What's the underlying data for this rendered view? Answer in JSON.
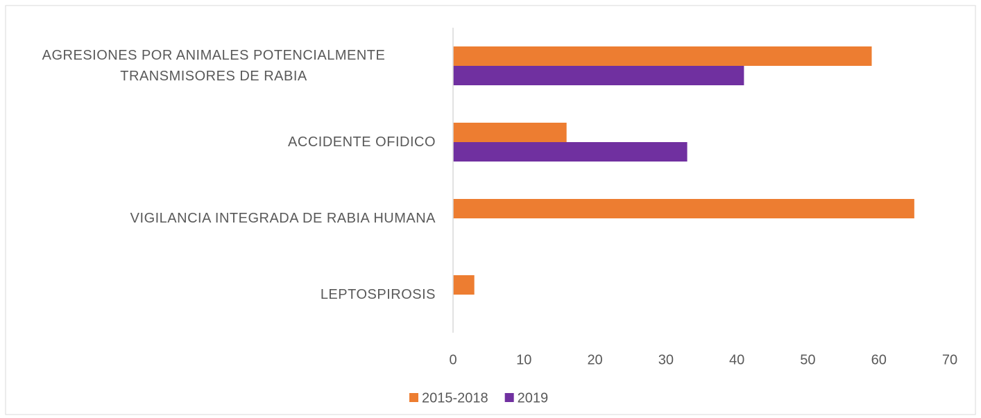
{
  "chart_data": {
    "type": "bar",
    "orientation": "horizontal",
    "categories": [
      "AGRESIONES POR ANIMALES POTENCIALMENTE TRANSMISORES DE RABIA",
      "ACCIDENTE OFIDICO",
      "VIGILANCIA INTEGRADA DE RABIA HUMANA",
      "LEPTOSPIROSIS"
    ],
    "series": [
      {
        "name": "2015-2018",
        "color": "#ed7d31",
        "values": [
          59,
          16,
          65,
          3
        ]
      },
      {
        "name": "2019",
        "color": "#7030a0",
        "values": [
          41,
          33,
          0,
          0
        ]
      }
    ],
    "xlim": [
      0,
      70
    ],
    "xticks": [
      0,
      10,
      20,
      30,
      40,
      50,
      60,
      70
    ],
    "grid": false,
    "legend": "bottom"
  }
}
